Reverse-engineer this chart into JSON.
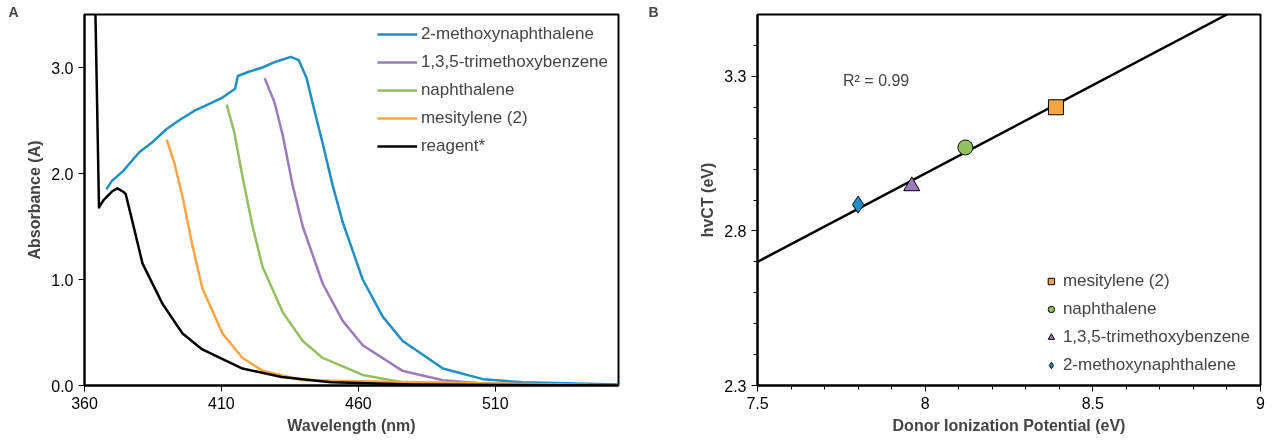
{
  "chart_data": [
    {
      "type": "line",
      "title": "A",
      "xlabel": "Wavelength (nm)",
      "ylabel": "Absorbance (A)",
      "xlim": [
        360,
        555
      ],
      "ylim": [
        0,
        3.5
      ],
      "xticks": [
        360,
        410,
        460,
        510
      ],
      "yticks": [
        {
          "value": 0,
          "label": "0.0"
        },
        {
          "value": 1,
          "label": "1.0"
        },
        {
          "value": 2,
          "label": "2.0"
        },
        {
          "value": 3,
          "label": "3.0"
        }
      ],
      "legend": "top right",
      "series": [
        {
          "name": "2-methoxynaphthalene",
          "color": "#1f8fc5",
          "x": [
            368,
            370,
            374,
            380,
            385,
            390,
            395,
            400,
            405,
            410,
            415,
            416,
            420,
            425,
            429.4,
            435.3,
            438.2,
            441.1,
            444,
            447,
            450.6,
            454.3,
            461.6,
            468.9,
            476.2,
            490.9,
            505.5,
            520,
            555
          ],
          "values": [
            1.85,
            1.93,
            2.02,
            2.2,
            2.3,
            2.42,
            2.51,
            2.59,
            2.65,
            2.71,
            2.8,
            2.92,
            2.96,
            3.0,
            3.05,
            3.1,
            3.07,
            2.9,
            2.59,
            2.28,
            1.89,
            1.54,
            1.0,
            0.65,
            0.42,
            0.16,
            0.06,
            0.03,
            0.01
          ]
        },
        {
          "name": "1,3,5-trimethoxybenzene",
          "color": "#9b7bb9",
          "x": [
            425.8,
            429.4,
            432.4,
            436,
            439.7,
            447,
            454.3,
            461.6,
            476,
            490.9,
            505.5,
            555
          ],
          "values": [
            2.9,
            2.67,
            2.36,
            1.89,
            1.5,
            0.96,
            0.61,
            0.38,
            0.14,
            0.05,
            0.02,
            0
          ]
        },
        {
          "name": "naphthalene",
          "color": "#92c060",
          "x": [
            411.9,
            414.6,
            417.7,
            421.4,
            425,
            432.4,
            439.7,
            447,
            461.6,
            476,
            510,
            555
          ],
          "values": [
            2.65,
            2.4,
            1.97,
            1.5,
            1.12,
            0.69,
            0.42,
            0.26,
            0.1,
            0.03,
            0.01,
            0
          ]
        },
        {
          "name": "mesitylene (2)",
          "color": "#f9a445",
          "x": [
            390,
            392.9,
            395.8,
            399.5,
            403,
            410.4,
            417.7,
            425,
            439.7,
            555
          ],
          "values": [
            2.32,
            2.09,
            1.78,
            1.31,
            0.92,
            0.49,
            0.26,
            0.14,
            0.05,
            0
          ]
        },
        {
          "name": "reagent*",
          "color": "#000000",
          "x": [
            364.0,
            365.3,
            367,
            370,
            372,
            374,
            375,
            377,
            381.2,
            388.5,
            395.8,
            403,
            417.7,
            432,
            450,
            480,
            555
          ],
          "values": [
            3.5,
            1.68,
            1.75,
            1.83,
            1.86,
            1.83,
            1.81,
            1.6,
            1.15,
            0.77,
            0.49,
            0.34,
            0.16,
            0.08,
            0.03,
            0.01,
            0
          ]
        }
      ]
    },
    {
      "type": "scatter",
      "title": "B",
      "xlabel": "Donor Ionization Potential (eV)",
      "ylabel": "hvCT (eV)",
      "xlim": [
        7.5,
        9
      ],
      "ylim": [
        2.3,
        3.5
      ],
      "xticks": [
        7.5,
        {
          "value": 7.6,
          "label": null
        },
        {
          "value": 7.7,
          "label": null
        },
        {
          "value": 7.8,
          "label": null
        },
        {
          "value": 7.9,
          "label": null
        },
        8,
        {
          "value": 8.1,
          "label": null
        },
        {
          "value": 8.2,
          "label": null
        },
        {
          "value": 8.3,
          "label": null
        },
        {
          "value": 8.4,
          "label": null
        },
        8.5,
        {
          "value": 8.6,
          "label": null
        },
        {
          "value": 8.7,
          "label": null
        },
        {
          "value": 8.8,
          "label": null
        },
        {
          "value": 8.9,
          "label": null
        },
        9
      ],
      "yticks": [
        2.3,
        {
          "value": 2.4,
          "label": null
        },
        {
          "value": 2.5,
          "label": null
        },
        {
          "value": 2.6,
          "label": null
        },
        {
          "value": 2.7,
          "label": null
        },
        2.8,
        {
          "value": 2.9,
          "label": null
        },
        {
          "value": 3.0,
          "label": null
        },
        {
          "value": 3.1,
          "label": null
        },
        {
          "value": 3.2,
          "label": null
        },
        3.3,
        {
          "value": 3.4,
          "label": null
        }
      ],
      "legend": "bottom right",
      "annotations": [
        "R² = 0.99"
      ],
      "series": [
        {
          "type": "line",
          "color": "#000000",
          "x": [
            7.5,
            8.9
          ],
          "values": [
            2.7,
            3.5
          ]
        },
        {
          "name": "mesitylene (2)",
          "color": "#f9a445",
          "marker": "square",
          "x": [
            8.39
          ],
          "values": [
            3.2
          ]
        },
        {
          "name": "naphthalene",
          "color": "#92c060",
          "marker": "circle",
          "x": [
            8.12
          ],
          "values": [
            3.07
          ]
        },
        {
          "name": "1,3,5-trimethoxybenzene",
          "color": "#9b7bb9",
          "marker": "triangle",
          "x": [
            7.96
          ],
          "values": [
            2.945
          ]
        },
        {
          "name": "2-methoxynaphthalene",
          "color": "#1f8fc5",
          "marker": "diamond",
          "x": [
            7.8
          ],
          "values": [
            2.885
          ]
        }
      ]
    }
  ]
}
